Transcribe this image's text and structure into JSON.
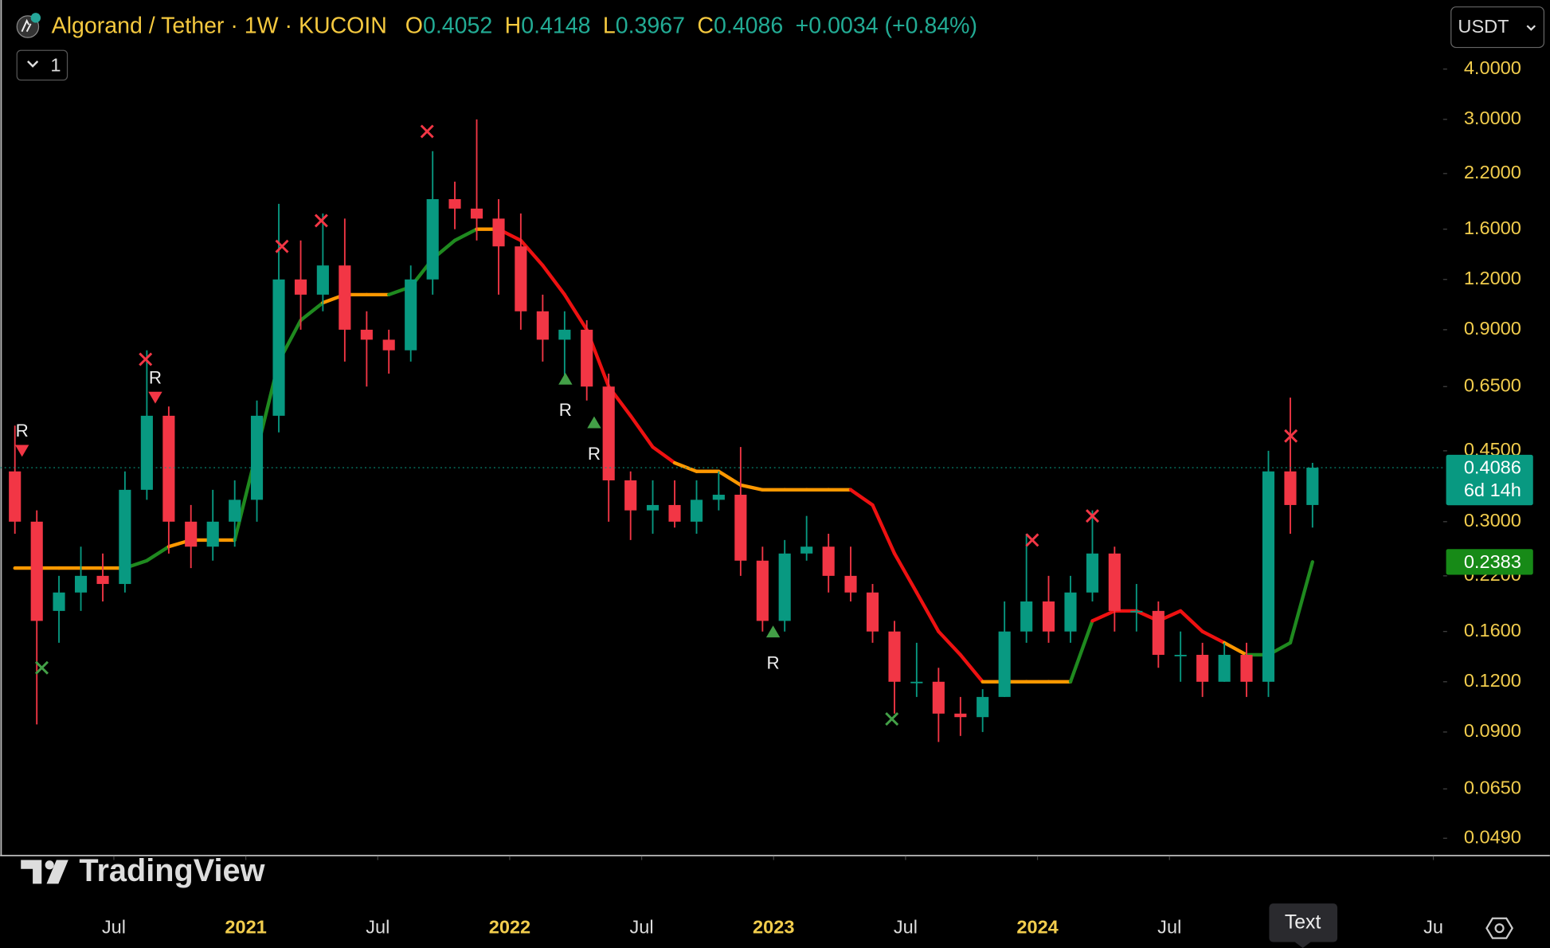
{
  "header": {
    "title": "Algorand / Tether · 1W · KUCOIN",
    "o_label": "O",
    "o": "0.4052",
    "h_label": "H",
    "h": "0.4148",
    "l_label": "L",
    "l": "0.3967",
    "c_label": "C",
    "c": "0.4086",
    "change": "+0.0034 (+0.84%)",
    "indicators": "1",
    "currency": "USDT",
    "logo": "TradingView",
    "tooltip": "Text"
  },
  "chart_data": {
    "type": "candlestick",
    "log_scale": true,
    "grid": false,
    "up_color": "#089981",
    "down_color": "#f23645",
    "x": [
      2020.125,
      2020.208,
      2020.292,
      2020.375,
      2020.458,
      2020.542,
      2020.625,
      2020.708,
      2020.792,
      2020.875,
      2020.958,
      2021.042,
      2021.125,
      2021.208,
      2021.292,
      2021.375,
      2021.458,
      2021.542,
      2021.625,
      2021.708,
      2021.792,
      2021.875,
      2021.958,
      2022.042,
      2022.125,
      2022.208,
      2022.292,
      2022.375,
      2022.458,
      2022.542,
      2022.625,
      2022.708,
      2022.792,
      2022.875,
      2022.958,
      2023.042,
      2023.125,
      2023.208,
      2023.292,
      2023.375,
      2023.458,
      2023.542,
      2023.625,
      2023.708,
      2023.792,
      2023.875,
      2023.958,
      2024.042,
      2024.125,
      2024.208,
      2024.292,
      2024.375,
      2024.458,
      2024.542,
      2024.625,
      2024.708,
      2024.792,
      2024.875,
      2024.958,
      2025.042
    ],
    "open": [
      0.4,
      0.3,
      0.18,
      0.2,
      0.22,
      0.21,
      0.36,
      0.55,
      0.3,
      0.26,
      0.3,
      0.34,
      0.55,
      1.2,
      1.1,
      1.3,
      0.9,
      0.85,
      0.8,
      1.2,
      1.9,
      1.8,
      1.7,
      1.45,
      1.0,
      0.85,
      0.9,
      0.65,
      0.38,
      0.32,
      0.33,
      0.3,
      0.34,
      0.35,
      0.24,
      0.17,
      0.25,
      0.26,
      0.22,
      0.2,
      0.16,
      0.12,
      0.12,
      0.1,
      0.098,
      0.11,
      0.16,
      0.19,
      0.16,
      0.2,
      0.25,
      0.18,
      0.18,
      0.14,
      0.14,
      0.12,
      0.14,
      0.12,
      0.4,
      0.33
    ],
    "high": [
      0.52,
      0.32,
      0.22,
      0.26,
      0.25,
      0.4,
      0.8,
      0.58,
      0.33,
      0.36,
      0.38,
      0.6,
      1.85,
      1.5,
      1.75,
      1.7,
      1.0,
      0.9,
      1.3,
      2.5,
      2.1,
      3.0,
      1.9,
      1.75,
      1.1,
      1.0,
      0.95,
      0.7,
      0.4,
      0.38,
      0.38,
      0.38,
      0.4,
      0.46,
      0.26,
      0.27,
      0.31,
      0.28,
      0.26,
      0.21,
      0.17,
      0.15,
      0.13,
      0.11,
      0.115,
      0.19,
      0.28,
      0.22,
      0.22,
      0.32,
      0.26,
      0.21,
      0.19,
      0.16,
      0.15,
      0.15,
      0.15,
      0.45,
      0.61,
      0.42
    ],
    "low": [
      0.28,
      0.094,
      0.15,
      0.18,
      0.19,
      0.2,
      0.34,
      0.25,
      0.23,
      0.24,
      0.26,
      0.3,
      0.5,
      0.9,
      1.0,
      0.75,
      0.65,
      0.7,
      0.75,
      1.1,
      1.6,
      1.5,
      1.1,
      0.9,
      0.75,
      0.68,
      0.6,
      0.3,
      0.27,
      0.28,
      0.29,
      0.28,
      0.32,
      0.22,
      0.16,
      0.16,
      0.24,
      0.2,
      0.19,
      0.15,
      0.1,
      0.11,
      0.085,
      0.088,
      0.09,
      0.11,
      0.15,
      0.15,
      0.15,
      0.19,
      0.16,
      0.16,
      0.13,
      0.12,
      0.11,
      0.12,
      0.11,
      0.11,
      0.28,
      0.29
    ],
    "close": [
      0.3,
      0.17,
      0.2,
      0.22,
      0.21,
      0.36,
      0.55,
      0.3,
      0.26,
      0.3,
      0.34,
      0.55,
      1.2,
      1.1,
      1.3,
      0.9,
      0.85,
      0.8,
      1.2,
      1.9,
      1.8,
      1.7,
      1.45,
      1.0,
      0.85,
      0.9,
      0.65,
      0.38,
      0.32,
      0.33,
      0.3,
      0.34,
      0.35,
      0.24,
      0.17,
      0.25,
      0.26,
      0.22,
      0.2,
      0.16,
      0.12,
      0.12,
      0.1,
      0.098,
      0.11,
      0.16,
      0.19,
      0.16,
      0.2,
      0.25,
      0.18,
      0.18,
      0.14,
      0.14,
      0.12,
      0.14,
      0.12,
      0.4,
      0.33,
      0.4086
    ],
    "trail": {
      "values": [
        0.23,
        0.23,
        0.23,
        0.23,
        0.23,
        0.23,
        0.24,
        0.26,
        0.27,
        0.27,
        0.27,
        0.45,
        0.75,
        0.95,
        1.05,
        1.1,
        1.1,
        1.1,
        1.15,
        1.35,
        1.5,
        1.6,
        1.6,
        1.5,
        1.3,
        1.1,
        0.9,
        0.65,
        0.55,
        0.46,
        0.42,
        0.4,
        0.4,
        0.37,
        0.36,
        0.36,
        0.36,
        0.36,
        0.36,
        0.33,
        0.25,
        0.2,
        0.16,
        0.14,
        0.12,
        0.12,
        0.12,
        0.12,
        0.12,
        0.17,
        0.18,
        0.18,
        0.17,
        0.18,
        0.16,
        0.15,
        0.14,
        0.14,
        0.15,
        0.2383
      ],
      "colors": [
        "#ff9800",
        "#ff9800",
        "#ff9800",
        "#ff9800",
        "#ff9800",
        "#ff9800",
        "#1f8a1f",
        "#1f8a1f",
        "#ff9800",
        "#ff9800",
        "#ff9800",
        "#1f8a1f",
        "#1f8a1f",
        "#1f8a1f",
        "#1f8a1f",
        "#ff9800",
        "#ff9800",
        "#ff9800",
        "#1f8a1f",
        "#1f8a1f",
        "#1f8a1f",
        "#1f8a1f",
        "#ff9800",
        "#ee1111",
        "#ee1111",
        "#ee1111",
        "#ee1111",
        "#ee1111",
        "#ee1111",
        "#ee1111",
        "#ee1111",
        "#ff9800",
        "#ff9800",
        "#ff9800",
        "#ff9800",
        "#ff9800",
        "#ff9800",
        "#ff9800",
        "#ff9800",
        "#ee1111",
        "#ee1111",
        "#ee1111",
        "#ee1111",
        "#ee1111",
        "#ee1111",
        "#ff9800",
        "#ff9800",
        "#ff9800",
        "#ff9800",
        "#1f8a1f",
        "#ee1111",
        "#ee1111",
        "#ee1111",
        "#ee1111",
        "#ee1111",
        "#ee1111",
        "#ff9800",
        "#1f8a1f",
        "#1f8a1f",
        "#1f8a1f"
      ]
    },
    "markers": [
      {
        "x": 2020.152,
        "value": 0.45,
        "shape": "triangle-down",
        "color": "#f23645",
        "label": "R"
      },
      {
        "x": 2020.657,
        "value": 0.61,
        "shape": "triangle-down",
        "color": "#f23645",
        "label": "R"
      },
      {
        "x": 2022.211,
        "value": 0.68,
        "shape": "triangle-up",
        "color": "#43a047",
        "label": "R"
      },
      {
        "x": 2022.32,
        "value": 0.53,
        "shape": "triangle-up",
        "color": "#43a047",
        "label": "R"
      },
      {
        "x": 2022.998,
        "value": 0.16,
        "shape": "triangle-up",
        "color": "#43a047",
        "label": "R"
      },
      {
        "x": 2020.62,
        "value": 0.76,
        "shape": "cross",
        "color": "#f23645"
      },
      {
        "x": 2021.137,
        "value": 1.45,
        "shape": "cross",
        "color": "#f23645"
      },
      {
        "x": 2021.286,
        "value": 1.68,
        "shape": "cross",
        "color": "#f23645"
      },
      {
        "x": 2021.687,
        "value": 2.8,
        "shape": "cross",
        "color": "#f23645"
      },
      {
        "x": 2023.98,
        "value": 0.27,
        "shape": "cross",
        "color": "#f23645"
      },
      {
        "x": 2024.208,
        "value": 0.31,
        "shape": "cross",
        "color": "#f23645"
      },
      {
        "x": 2024.96,
        "value": 0.49,
        "shape": "cross",
        "color": "#f23645"
      },
      {
        "x": 2020.227,
        "value": 0.13,
        "shape": "cross",
        "color": "#43a047"
      },
      {
        "x": 2023.448,
        "value": 0.097,
        "shape": "cross",
        "color": "#43a047"
      }
    ],
    "last_price": {
      "value": 0.4086,
      "label": "0.4086",
      "countdown": "6d 14h",
      "color": "#089981"
    },
    "trail_last": {
      "value": 0.2383,
      "label": "0.2383",
      "color": "#178a17"
    },
    "xlim": [
      2020.069,
      2025.537
    ],
    "xticks": [
      {
        "value": 2020.5,
        "label": "Jul"
      },
      {
        "value": 2021,
        "label": "2021"
      },
      {
        "value": 2021.5,
        "label": "Jul"
      },
      {
        "value": 2022,
        "label": "2022"
      },
      {
        "value": 2022.5,
        "label": "Jul"
      },
      {
        "value": 2023,
        "label": "2023"
      },
      {
        "value": 2023.5,
        "label": "Jul"
      },
      {
        "value": 2024,
        "label": "2024"
      },
      {
        "value": 2024.5,
        "label": "Jul"
      },
      {
        "value": 2025.5,
        "label": "Ju"
      }
    ],
    "ylim": [
      0.0445,
      5.94
    ],
    "yticks": [
      {
        "value": 4,
        "label": "4.0000"
      },
      {
        "value": 3,
        "label": "3.0000"
      },
      {
        "value": 2.2,
        "label": "2.2000"
      },
      {
        "value": 1.6,
        "label": "1.6000"
      },
      {
        "value": 1.2,
        "label": "1.2000"
      },
      {
        "value": 0.9,
        "label": "0.9000"
      },
      {
        "value": 0.65,
        "label": "0.6500"
      },
      {
        "value": 0.45,
        "label": "0.4500"
      },
      {
        "value": 0.3,
        "label": "0.3000"
      },
      {
        "value": 0.22,
        "label": "0.2200"
      },
      {
        "value": 0.16,
        "label": "0.1600"
      },
      {
        "value": 0.12,
        "label": "0.1200"
      },
      {
        "value": 0.09,
        "label": "0.0900"
      },
      {
        "value": 0.065,
        "label": "0.0650"
      },
      {
        "value": 0.049,
        "label": "0.0490"
      }
    ]
  }
}
